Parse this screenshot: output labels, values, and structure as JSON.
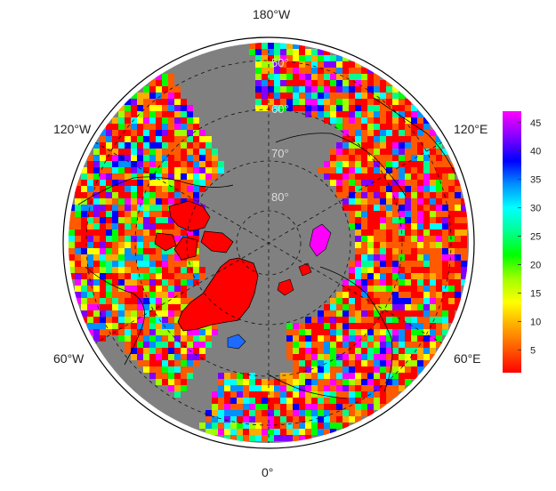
{
  "map": {
    "projection": "north polar stereographic",
    "longitude_labels": {
      "top": "180°W",
      "upper_left": "120°W",
      "upper_right": "120°E",
      "lower_left": "60°W",
      "lower_right": "60°E",
      "bottom": "0°"
    },
    "latitude_labels": [
      "50°",
      "60°",
      "70°",
      "80°"
    ],
    "ocean_color": "#808080",
    "frame_color": "#000000"
  },
  "colorbar": {
    "ticks": [
      "5",
      "10",
      "15",
      "20",
      "25",
      "30",
      "35",
      "40",
      "45"
    ],
    "min": 1,
    "max": 47,
    "colors": [
      "#ff0000",
      "#ff5a00",
      "#ffaa00",
      "#ffff00",
      "#a0ff00",
      "#00ff00",
      "#00ff90",
      "#00ffff",
      "#0090ff",
      "#0000ff",
      "#8000ff",
      "#ff00ff"
    ]
  }
}
